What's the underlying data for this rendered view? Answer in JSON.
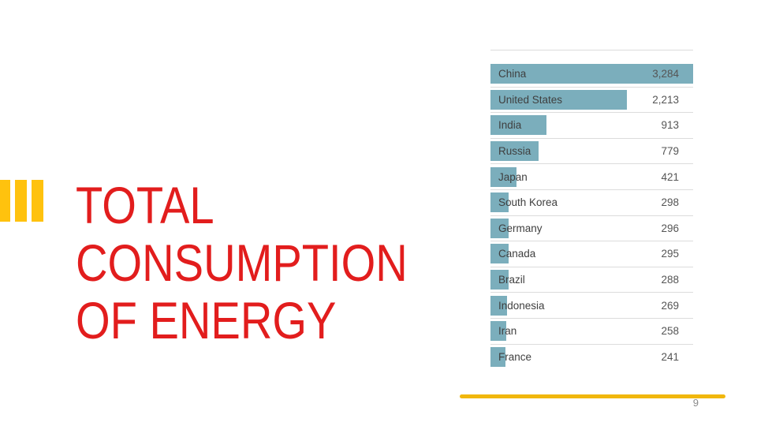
{
  "slide": {
    "title": {
      "lines": [
        "TOTAL",
        "CONSUMPTION",
        "OF ENERGY"
      ],
      "full_text": "TOTAL CONSUMPTION OF ENERGY",
      "color": "#E21D1D"
    },
    "page_number": "9"
  },
  "accent": {
    "title_bars_color": "#FFC20E",
    "footer_line_color": "#F1B70D"
  },
  "chart_data": {
    "type": "bar",
    "orientation": "horizontal",
    "title": "TOTAL CONSUMPTION OF ENERGY",
    "categories": [
      "China",
      "United States",
      "India",
      "Russia",
      "Japan",
      "South Korea",
      "Germany",
      "Canada",
      "Brazil",
      "Indonesia",
      "Iran",
      "France"
    ],
    "values": [
      3284,
      2213,
      913,
      779,
      421,
      298,
      296,
      295,
      288,
      269,
      258,
      241
    ],
    "value_labels": [
      "3,284",
      "2,213",
      "913",
      "779",
      "421",
      "298",
      "296",
      "295",
      "288",
      "269",
      "258",
      "241"
    ],
    "bar_color": "#7BAEBC",
    "label_color": "#3F3F3F",
    "value_color": "#555555",
    "separator_color": "#DCDCDC",
    "xlim": [
      0,
      3284
    ],
    "grid": "row-separator-lines",
    "legend": "none",
    "value_label_position": "right-aligned"
  }
}
